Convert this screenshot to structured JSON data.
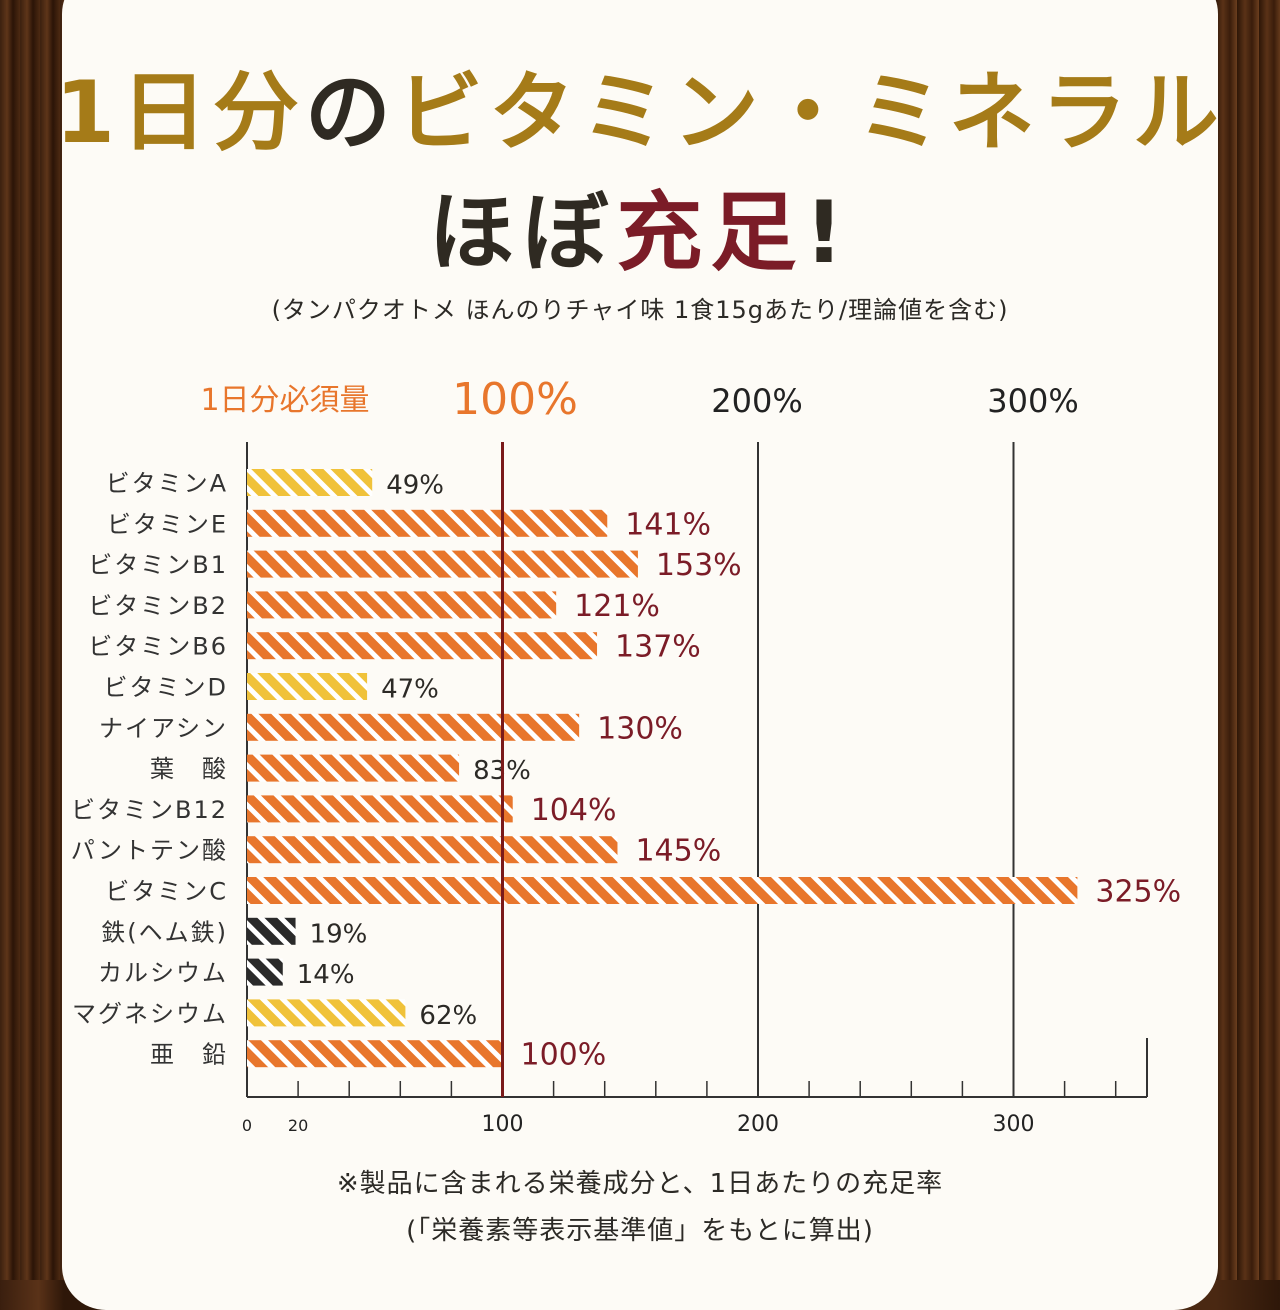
{
  "title_line1": [
    "1日分",
    "の",
    "ビタミン・ミネラル"
  ],
  "title_line2": [
    "ほぼ",
    "充足",
    "!"
  ],
  "subtitle": "(タンパクオトメ ほんのりチャイ味 1食15gあたり/理論値を含む)",
  "colors": {
    "gold": "#a57b18",
    "dark": "#2f2a22",
    "red": "#7b1c27",
    "orange": "#e8762c",
    "yellow": "#f0c23a",
    "black": "#2a2a2a",
    "reference_line": "#7a1a1a"
  },
  "chart_data": {
    "type": "bar",
    "orientation": "horizontal",
    "header_label": "1日分必須量",
    "header_ticks": [
      "100%",
      "200%",
      "300%"
    ],
    "categories": [
      "ビタミンA",
      "ビタミンE",
      "ビタミンB1",
      "ビタミンB2",
      "ビタミンB6",
      "ビタミンD",
      "ナイアシン",
      "葉　酸",
      "ビタミンB12",
      "パントテン酸",
      "ビタミンC",
      "鉄(ヘム鉄)",
      "カルシウム",
      "マグネシウム",
      "亜　鉛"
    ],
    "values": [
      49,
      141,
      153,
      121,
      137,
      47,
      130,
      83,
      104,
      145,
      325,
      19,
      14,
      62,
      100
    ],
    "value_labels": [
      "49%",
      "141%",
      "153%",
      "121%",
      "137%",
      "47%",
      "130%",
      "83%",
      "104%",
      "145%",
      "325%",
      "19%",
      "14%",
      "62%",
      "100%"
    ],
    "bar_colors": [
      "yellow",
      "orange",
      "orange",
      "orange",
      "orange",
      "yellow",
      "orange",
      "orange",
      "orange",
      "orange",
      "orange",
      "black",
      "black",
      "yellow",
      "orange"
    ],
    "x_ticks": [
      0,
      20,
      100,
      200,
      300
    ],
    "xlim": [
      0,
      350
    ],
    "reference_value": 100,
    "grid_values": [
      200,
      300
    ]
  },
  "footnote1": "※製品に含まれる栄養成分と、1日あたりの充足率",
  "footnote2": "(「栄養素等表示基準値」をもとに算出)"
}
